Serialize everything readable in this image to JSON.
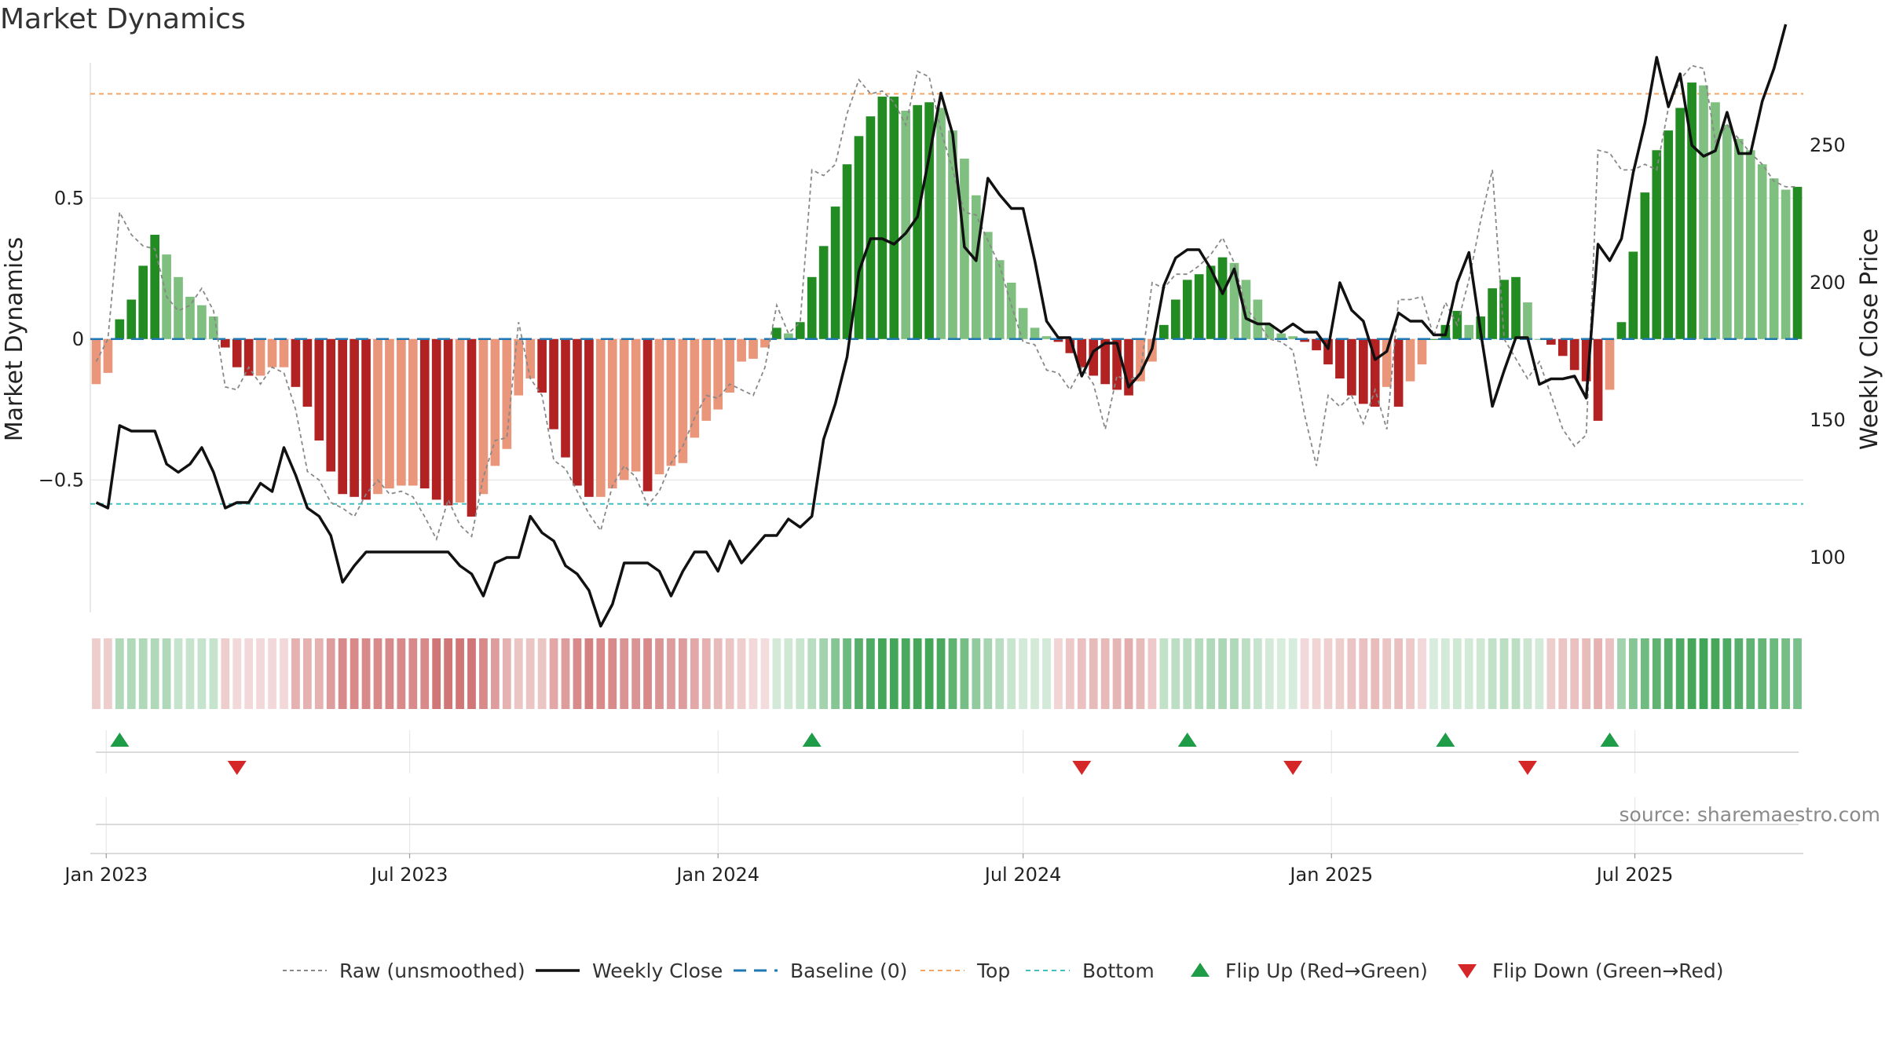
{
  "title": "Market Dynamics",
  "source": "source: sharemaestro.com",
  "colors": {
    "strong_green": "#228b22",
    "light_green": "#7fbf7f",
    "strong_red": "#b22222",
    "light_red": "#e9967a",
    "price_line": "#111111",
    "raw_line": "#888888",
    "baseline": "#1f77b4",
    "top": "#f4a460",
    "bottom": "#40c0c0",
    "flip_up": "#1e9c48",
    "flip_down": "#d62728"
  },
  "legend": [
    {
      "label": "Raw (unsmoothed)",
      "style": "raw"
    },
    {
      "label": "Weekly Close",
      "style": "price"
    },
    {
      "label": "Baseline (0)",
      "style": "baseline"
    },
    {
      "label": "Top",
      "style": "top"
    },
    {
      "label": "Bottom",
      "style": "bottom"
    },
    {
      "label": "Flip Up (Red→Green)",
      "style": "flip-up"
    },
    {
      "label": "Flip Down (Green→Red)",
      "style": "flip-down"
    }
  ],
  "chart_data": {
    "type": "bar",
    "start_date": "2022-12-26",
    "x_ticks": [
      {
        "label": "Jan 2023",
        "date": "2023-01-01"
      },
      {
        "label": "Jul 2023",
        "date": "2023-07-01"
      },
      {
        "label": "Jan 2024",
        "date": "2024-01-01"
      },
      {
        "label": "Jul 2024",
        "date": "2024-07-01"
      },
      {
        "label": "Jan 2025",
        "date": "2025-01-01"
      },
      {
        "label": "Jul 2025",
        "date": "2025-07-01"
      }
    ],
    "y_left": {
      "label": "Market Dynamics",
      "range": [
        -0.97,
        0.98
      ],
      "ticks": [
        {
          "v": 0.5,
          "label": "0.5"
        },
        {
          "v": 0,
          "label": "0"
        },
        {
          "v": -0.5,
          "label": "−0.5"
        }
      ]
    },
    "y_right": {
      "label": "Weekly Close Price",
      "range": [
        80,
        280
      ],
      "ticks": [
        100,
        150,
        200,
        250
      ]
    },
    "top_threshold": 0.87,
    "bottom_threshold": -0.585,
    "baseline": 0,
    "series": [
      {
        "name": "Market Dynamics",
        "values": [
          -0.16,
          -0.12,
          0.07,
          0.14,
          0.26,
          0.37,
          0.3,
          0.22,
          0.15,
          0.12,
          0.08,
          -0.03,
          -0.1,
          -0.13,
          -0.13,
          -0.1,
          -0.1,
          -0.17,
          -0.24,
          -0.36,
          -0.47,
          -0.55,
          -0.56,
          -0.57,
          -0.55,
          -0.53,
          -0.52,
          -0.52,
          -0.53,
          -0.57,
          -0.59,
          -0.58,
          -0.63,
          -0.55,
          -0.45,
          -0.39,
          -0.2,
          -0.14,
          -0.19,
          -0.32,
          -0.42,
          -0.52,
          -0.56,
          -0.56,
          -0.53,
          -0.5,
          -0.47,
          -0.54,
          -0.48,
          -0.45,
          -0.44,
          -0.35,
          -0.29,
          -0.25,
          -0.19,
          -0.08,
          -0.07,
          -0.03,
          0.04,
          0.02,
          0.06,
          0.22,
          0.33,
          0.47,
          0.62,
          0.72,
          0.79,
          0.86,
          0.86,
          0.81,
          0.83,
          0.84,
          0.82,
          0.74,
          0.64,
          0.51,
          0.38,
          0.28,
          0.2,
          0.11,
          0.04,
          0.01,
          -0.01,
          -0.05,
          -0.1,
          -0.13,
          -0.16,
          -0.18,
          -0.2,
          -0.15,
          -0.08,
          0.05,
          0.14,
          0.21,
          0.23,
          0.26,
          0.29,
          0.27,
          0.21,
          0.14,
          0.05,
          0.02,
          0.01,
          -0.01,
          -0.04,
          -0.09,
          -0.14,
          -0.2,
          -0.23,
          -0.24,
          -0.17,
          -0.24,
          -0.15,
          -0.09,
          0.0,
          0.05,
          0.1,
          0.05,
          0.08,
          0.18,
          0.21,
          0.22,
          0.13,
          0.0,
          -0.02,
          -0.06,
          -0.11,
          -0.15,
          -0.29,
          -0.18,
          0.06,
          0.31,
          0.52,
          0.67,
          0.74,
          0.82,
          0.91,
          0.9,
          0.84,
          0.76,
          0.71,
          0.67,
          0.62,
          0.57,
          0.53,
          0.54
        ]
      },
      {
        "name": "Raw (unsmoothed)",
        "values": [
          -0.08,
          0.0,
          0.45,
          0.37,
          0.33,
          0.32,
          0.15,
          0.1,
          0.12,
          0.18,
          0.1,
          -0.17,
          -0.18,
          -0.1,
          -0.16,
          -0.1,
          -0.12,
          -0.25,
          -0.47,
          -0.5,
          -0.58,
          -0.6,
          -0.63,
          -0.55,
          -0.5,
          -0.55,
          -0.54,
          -0.56,
          -0.63,
          -0.71,
          -0.57,
          -0.66,
          -0.7,
          -0.49,
          -0.36,
          -0.35,
          0.06,
          -0.14,
          -0.2,
          -0.43,
          -0.46,
          -0.54,
          -0.62,
          -0.68,
          -0.52,
          -0.45,
          -0.49,
          -0.59,
          -0.54,
          -0.44,
          -0.38,
          -0.28,
          -0.2,
          -0.21,
          -0.16,
          -0.18,
          -0.2,
          -0.1,
          0.12,
          0.02,
          0.06,
          0.6,
          0.58,
          0.62,
          0.8,
          0.92,
          0.87,
          0.88,
          0.84,
          0.76,
          0.95,
          0.93,
          0.74,
          0.6,
          0.45,
          0.44,
          0.35,
          0.26,
          0.12,
          -0.01,
          -0.02,
          -0.11,
          -0.12,
          -0.18,
          -0.1,
          -0.16,
          -0.32,
          -0.13,
          -0.15,
          -0.12,
          0.2,
          0.18,
          0.23,
          0.23,
          0.26,
          0.3,
          0.36,
          0.27,
          0.11,
          0.06,
          0.0,
          -0.01,
          -0.04,
          -0.27,
          -0.45,
          -0.2,
          -0.24,
          -0.2,
          -0.3,
          -0.18,
          -0.32,
          0.14,
          0.14,
          0.15,
          0.01,
          0.13,
          0.05,
          0.21,
          0.42,
          0.6,
          0.0,
          -0.07,
          -0.14,
          -0.08,
          -0.2,
          -0.32,
          -0.38,
          -0.34,
          0.67,
          0.66,
          0.6,
          0.6,
          0.62,
          0.6,
          0.82,
          0.92,
          0.97,
          0.96,
          0.7,
          0.76,
          0.71,
          0.66,
          0.62,
          0.56,
          0.54,
          0.54
        ]
      },
      {
        "name": "Weekly Close",
        "values": [
          120,
          118,
          148,
          146,
          146,
          146,
          134,
          131,
          134,
          140,
          131,
          118,
          120,
          120,
          127,
          124,
          140,
          130,
          118,
          115,
          108,
          91,
          97,
          102,
          102,
          102,
          102,
          102,
          102,
          102,
          102,
          97,
          94,
          86,
          98,
          100,
          100,
          115,
          109,
          106,
          97,
          94,
          88,
          75,
          83,
          98,
          98,
          98,
          95,
          86,
          95,
          102,
          102,
          95,
          106,
          98,
          103,
          108,
          108,
          114,
          111,
          115,
          143,
          156,
          173,
          204,
          216,
          216,
          214,
          218,
          224,
          246,
          269,
          254,
          213,
          208,
          238,
          232,
          227,
          227,
          208,
          186,
          180,
          180,
          166,
          175,
          178,
          178,
          162,
          167,
          176,
          199,
          209,
          212,
          212,
          205,
          196,
          205,
          187,
          185,
          185,
          182,
          185,
          182,
          182,
          176,
          200,
          190,
          186,
          172,
          175,
          189,
          186,
          186,
          181,
          181,
          200,
          211,
          182,
          155,
          168,
          180,
          180,
          163,
          165,
          165,
          166,
          158,
          214,
          208,
          216,
          240,
          258,
          282,
          264,
          276,
          250,
          246,
          248,
          262,
          247,
          247,
          266,
          278,
          294
        ]
      }
    ],
    "strip_intensity": [
      0.26,
      0.26,
      0.36,
      0.36,
      0.36,
      0.36,
      0.36,
      0.26,
      0.26,
      0.26,
      0.26,
      0.26,
      0.2,
      0.2,
      0.2,
      0.2,
      0.2,
      0.4,
      0.4,
      0.4,
      0.5,
      0.6,
      0.6,
      0.6,
      0.6,
      0.6,
      0.6,
      0.6,
      0.6,
      0.7,
      0.7,
      0.7,
      0.7,
      0.6,
      0.5,
      0.4,
      0.3,
      0.3,
      0.3,
      0.45,
      0.5,
      0.6,
      0.65,
      0.6,
      0.6,
      0.55,
      0.55,
      0.6,
      0.55,
      0.5,
      0.5,
      0.45,
      0.4,
      0.35,
      0.3,
      0.25,
      0.2,
      0.18,
      0.2,
      0.22,
      0.25,
      0.32,
      0.42,
      0.55,
      0.66,
      0.76,
      0.8,
      0.85,
      0.85,
      0.82,
      0.84,
      0.85,
      0.82,
      0.72,
      0.62,
      0.5,
      0.4,
      0.32,
      0.25,
      0.2,
      0.2,
      0.2,
      0.22,
      0.28,
      0.32,
      0.35,
      0.36,
      0.38,
      0.42,
      0.35,
      0.28,
      0.28,
      0.3,
      0.32,
      0.34,
      0.36,
      0.38,
      0.36,
      0.3,
      0.26,
      0.2,
      0.18,
      0.18,
      0.2,
      0.22,
      0.24,
      0.26,
      0.3,
      0.32,
      0.34,
      0.3,
      0.33,
      0.28,
      0.2,
      0.18,
      0.2,
      0.22,
      0.2,
      0.22,
      0.28,
      0.3,
      0.3,
      0.24,
      0.2,
      0.26,
      0.3,
      0.32,
      0.34,
      0.4,
      0.32,
      0.42,
      0.55,
      0.65,
      0.72,
      0.76,
      0.8,
      0.84,
      0.86,
      0.84,
      0.8,
      0.76,
      0.72,
      0.7,
      0.66,
      0.62,
      0.6,
      0.6
    ],
    "flips": [
      {
        "type": "up",
        "date": "2023-01-09"
      },
      {
        "type": "down",
        "date": "2023-03-20"
      },
      {
        "type": "up",
        "date": "2024-02-26"
      },
      {
        "type": "down",
        "date": "2024-08-05"
      },
      {
        "type": "up",
        "date": "2024-10-07"
      },
      {
        "type": "down",
        "date": "2024-12-09"
      },
      {
        "type": "up",
        "date": "2025-03-10"
      },
      {
        "type": "down",
        "date": "2025-04-28"
      },
      {
        "type": "up",
        "date": "2025-06-16"
      }
    ]
  }
}
